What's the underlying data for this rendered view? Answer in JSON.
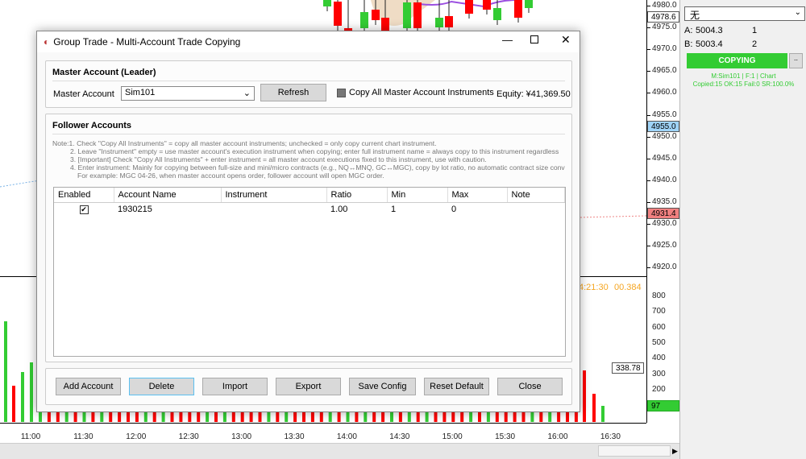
{
  "chart": {
    "price_labels": [
      "4980.0",
      "4975.0",
      "4970.0",
      "4965.0",
      "4960.0",
      "4955.0",
      "4950.0",
      "4945.0",
      "4940.0",
      "4935.0",
      "4930.0",
      "4925.0",
      "4920.0"
    ],
    "price_tags": {
      "current": "4978.6",
      "blue": "4955.0",
      "red": "4931.4"
    },
    "volume_labels": [
      "800",
      "700",
      "600",
      "500",
      "400",
      "300",
      "200"
    ],
    "volume_tags": {
      "current": "338.78",
      "green": "97"
    },
    "time_labels": [
      "11:00",
      "11:30",
      "12:00",
      "12:30",
      "13:00",
      "13:30",
      "14:00",
      "14:30",
      "15:00",
      "15:30",
      "16:00",
      "16:30"
    ],
    "timer_text": "4:21:30",
    "timer_value": "00.384",
    "colors": {
      "up": "#33cc33",
      "down": "#ff0000",
      "blue_tag": "#9fd3f7",
      "red_tag": "#f08080",
      "timer": "#f5a623"
    }
  },
  "panel": {
    "select_value": "无",
    "ask_label": "A:",
    "ask_price": "5004.3",
    "ask_size": "1",
    "bid_label": "B:",
    "bid_price": "5003.4",
    "bid_size": "2",
    "copy_button": "COPYING",
    "more_button": "..",
    "status1": "M:Sim101 | F:1 | Chart",
    "status2": "Copied:15 OK:15 Fail:0 SR:100.0%"
  },
  "dialog": {
    "title": "Group Trade - Multi-Account Trade Copying",
    "master": {
      "group_title": "Master Account (Leader)",
      "label": "Master Account",
      "account": "Sim101",
      "refresh": "Refresh",
      "copy_all_label": "Copy All Master Account Instruments",
      "copy_all_checked": false,
      "equity": "Equity: ¥41,369.50"
    },
    "follower": {
      "group_title": "Follower Accounts",
      "notes": [
        "Note:1. Check \"Copy All Instruments\" = copy all master account instruments; unchecked = only copy current chart instrument.",
        "2. Leave \"Instrument\" empty = use master account's execution instrument when copying; enter full instrument name = always copy to this instrument regardless",
        "3. [Important] Check \"Copy All Instruments\" + enter instrument = all master account executions fixed to this instrument, use with caution.",
        "4. Enter instrument: Mainly for copying between full-size and mini/micro contracts (e.g., NQ↔MNQ, GC↔MGC), copy by lot ratio, no automatic contract size conversion.",
        "For example: MGC 04-26, when master account opens order, follower account will open MGC order."
      ],
      "columns": [
        "Enabled",
        "Account Name",
        "Instrument",
        "Ratio",
        "Min",
        "Max",
        "Note"
      ],
      "rows": [
        {
          "enabled": true,
          "account": "1930215",
          "instrument": "",
          "ratio": "1.00",
          "min": "1",
          "max": "0",
          "note": ""
        }
      ]
    },
    "buttons": [
      "Add Account",
      "Delete",
      "Import",
      "Export",
      "Save Config",
      "Reset Default",
      "Close"
    ]
  }
}
